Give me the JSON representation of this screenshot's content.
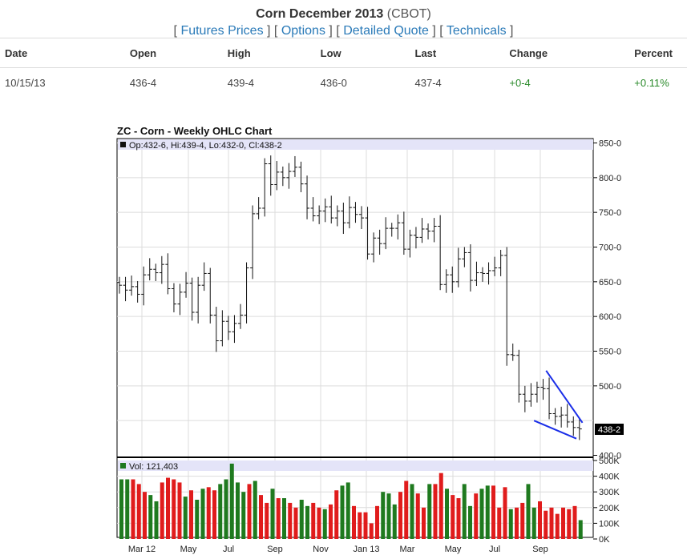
{
  "header": {
    "title": "Corn December 2013",
    "exchange": "(CBOT)",
    "links": [
      "Futures Prices",
      "Options",
      "Detailed Quote",
      "Technicals"
    ]
  },
  "quote_table": {
    "columns": [
      "Date",
      "Open",
      "High",
      "Low",
      "Last",
      "Change",
      "Percent"
    ],
    "row": [
      "10/15/13",
      "436-4",
      "439-4",
      "436-0",
      "437-4",
      "+0-4",
      "+0.11%"
    ]
  },
  "colors": {
    "up": "#2a8a2a",
    "down": "#e82020",
    "vol_up": "#1f7a1f",
    "vol_down": "#e01c1c",
    "trendline": "#1a2ee8",
    "info_band": "#e4e4f8",
    "link": "#2a7ab8"
  },
  "chart_data": [
    {
      "type": "ohlc",
      "title": "ZC - Corn - Weekly OHLC Chart",
      "info": "Op:432-6, Hi:439-4, Lo:432-0, Cl:438-2",
      "last_label": "438-2",
      "y_ticks": [
        "850-0",
        "800-0",
        "750-0",
        "700-0",
        "650-0",
        "600-0",
        "550-0",
        "500-0",
        "400-0"
      ],
      "ylim": [
        400,
        850
      ],
      "x_labels": [
        "Mar 12",
        "May",
        "Jul",
        "Sep",
        "Nov",
        "Jan 13",
        "Mar",
        "May",
        "Jul",
        "Sep"
      ],
      "grid": true,
      "close": [
        645,
        638,
        643,
        632,
        660,
        668,
        663,
        675,
        640,
        618,
        635,
        648,
        606,
        645,
        662,
        602,
        565,
        593,
        578,
        590,
        602,
        670,
        748,
        756,
        820,
        790,
        808,
        800,
        809,
        815,
        791,
        756,
        745,
        752,
        758,
        742,
        752,
        735,
        757,
        747,
        742,
        690,
        713,
        705,
        727,
        727,
        735,
        697,
        717,
        714,
        726,
        723,
        730,
        646,
        660,
        650,
        683,
        692,
        652,
        663,
        662,
        666,
        670,
        688,
        545,
        544,
        488,
        478,
        488,
        498,
        496,
        460,
        456,
        458,
        448,
        440,
        438
      ],
      "trendlines": [
        {
          "from": [
            70.5,
            522
          ],
          "to": [
            76.5,
            447
          ]
        },
        {
          "from": [
            68.5,
            450
          ],
          "to": [
            75.5,
            424
          ]
        }
      ]
    },
    {
      "type": "bar",
      "title": "Vol: 121,403",
      "y_ticks": [
        "500K",
        "400K",
        "300K",
        "200K",
        "100K",
        "0K"
      ],
      "ylim": [
        0,
        500000
      ],
      "values": [
        380000,
        380000,
        380000,
        350000,
        300000,
        280000,
        240000,
        360000,
        390000,
        380000,
        360000,
        270000,
        310000,
        250000,
        320000,
        330000,
        310000,
        350000,
        380000,
        480000,
        360000,
        300000,
        350000,
        370000,
        280000,
        230000,
        320000,
        260000,
        260000,
        230000,
        200000,
        250000,
        210000,
        230000,
        200000,
        190000,
        220000,
        310000,
        340000,
        360000,
        210000,
        170000,
        170000,
        100000,
        210000,
        300000,
        290000,
        220000,
        300000,
        370000,
        350000,
        290000,
        200000,
        350000,
        350000,
        420000,
        320000,
        280000,
        260000,
        350000,
        210000,
        290000,
        320000,
        340000,
        340000,
        200000,
        330000,
        190000,
        200000,
        230000,
        350000,
        200000,
        240000,
        180000,
        200000,
        160000,
        200000,
        190000,
        210000,
        120000
      ],
      "up": [
        true,
        true,
        false,
        false,
        false,
        true,
        true,
        false,
        false,
        false,
        false,
        true,
        false,
        true,
        true,
        false,
        false,
        true,
        true,
        true,
        true,
        true,
        false,
        true,
        false,
        false,
        true,
        false,
        true,
        false,
        false,
        true,
        true,
        false,
        false,
        true,
        false,
        false,
        true,
        true,
        false,
        false,
        false,
        false,
        false,
        true,
        true,
        true,
        false,
        false,
        true,
        false,
        false,
        true,
        false,
        false,
        true,
        false,
        false,
        true,
        true,
        false,
        true,
        true,
        false,
        false,
        false,
        true,
        false,
        false,
        true,
        true,
        false,
        false,
        false,
        false,
        false,
        false,
        false,
        true
      ]
    }
  ]
}
